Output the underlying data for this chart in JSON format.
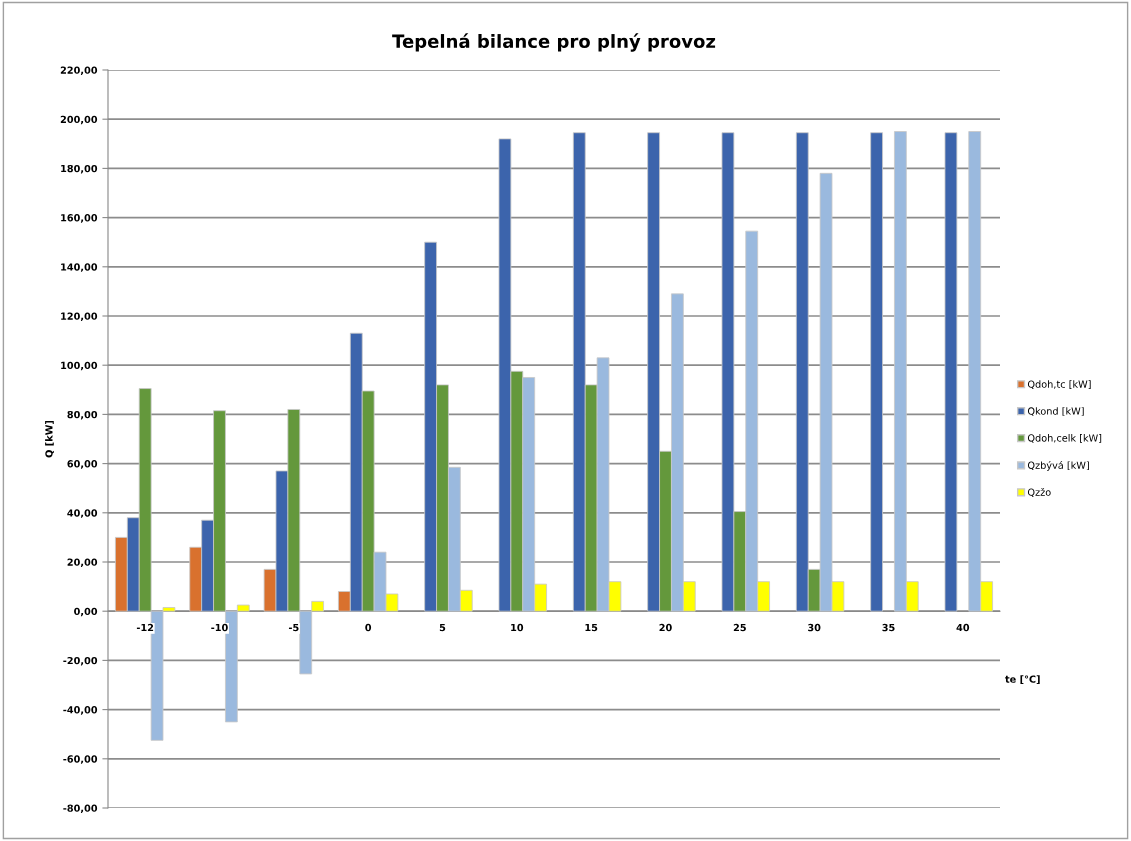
{
  "chart_data": {
    "type": "bar",
    "title": "Tepelná bilance pro plný provoz",
    "xlabel": "te [°C]",
    "ylabel": "Q [kW]",
    "categories": [
      "-12",
      "-10",
      "-5",
      "0",
      "5",
      "10",
      "15",
      "20",
      "25",
      "30",
      "35",
      "40"
    ],
    "series": [
      {
        "name": "Qdoh,tc [kW]",
        "color": "#d9712e",
        "values": [
          30,
          26,
          17,
          8,
          null,
          null,
          null,
          null,
          null,
          null,
          null,
          null
        ]
      },
      {
        "name": "Qkond [kW]",
        "color": "#3c64ac",
        "values": [
          38,
          37,
          57,
          113,
          150,
          192,
          194.5,
          194.5,
          194.5,
          194.5,
          194.5,
          194.5
        ]
      },
      {
        "name": "Qdoh,celk [kW]",
        "color": "#64983c",
        "values": [
          90.5,
          81.5,
          82,
          89.5,
          92,
          97.5,
          92,
          65,
          40.5,
          17,
          null,
          null
        ]
      },
      {
        "name": "Qzbývá [kW]",
        "color": "#9ab9de",
        "values": [
          -52.5,
          -45,
          -25.5,
          24,
          58.5,
          95,
          103,
          129,
          154.5,
          178,
          195,
          195
        ]
      },
      {
        "name": "Qzžo",
        "color": "#ffff00",
        "values": [
          1.5,
          2.5,
          4,
          7,
          8.5,
          11,
          12,
          12,
          12,
          12,
          12,
          12
        ]
      }
    ],
    "ylim": [
      -80,
      220
    ],
    "yticks": [
      {
        "value": -80,
        "label": "-80,00"
      },
      {
        "value": -60,
        "label": "-60,00"
      },
      {
        "value": -40,
        "label": "-40,00"
      },
      {
        "value": -20,
        "label": "-20,00"
      },
      {
        "value": 0,
        "label": "0,00"
      },
      {
        "value": 20,
        "label": "20,00"
      },
      {
        "value": 40,
        "label": "40,00"
      },
      {
        "value": 60,
        "label": "60,00"
      },
      {
        "value": 80,
        "label": "80,00"
      },
      {
        "value": 100,
        "label": "100,00"
      },
      {
        "value": 120,
        "label": "120,00"
      },
      {
        "value": 140,
        "label": "140,00"
      },
      {
        "value": 160,
        "label": "160,00"
      },
      {
        "value": 180,
        "label": "180,00"
      },
      {
        "value": 200,
        "label": "200,00"
      },
      {
        "value": 220,
        "label": "220,00"
      }
    ],
    "grid": "y",
    "legend": "right"
  }
}
